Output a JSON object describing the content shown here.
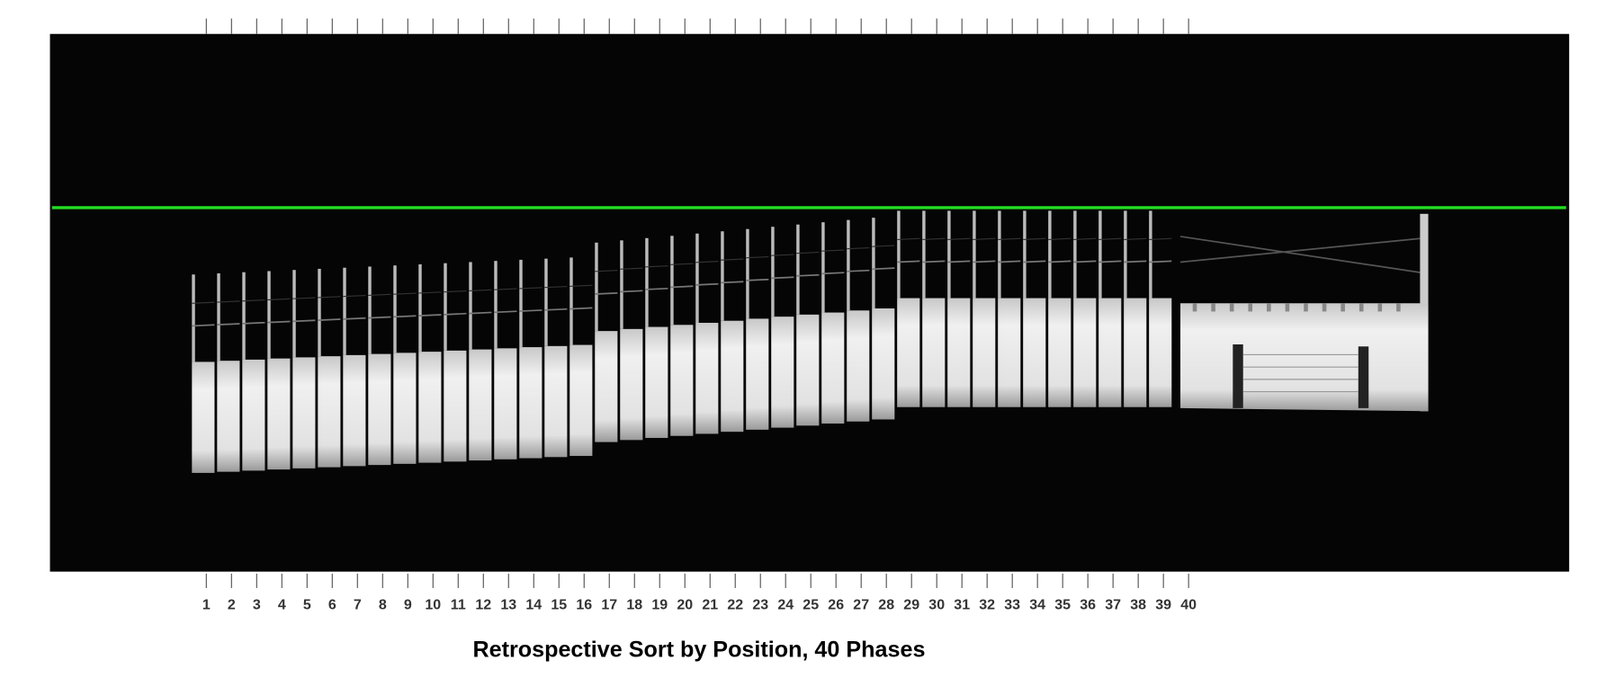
{
  "figure": {
    "phases": [
      1,
      2,
      3,
      4,
      5,
      6,
      7,
      8,
      9,
      10,
      11,
      12,
      13,
      14,
      15,
      16,
      17,
      18,
      19,
      20,
      21,
      22,
      23,
      24,
      25,
      26,
      27,
      28,
      29,
      30,
      31,
      32,
      33,
      34,
      35,
      36,
      37,
      38,
      39,
      40
    ],
    "caption": "Retrospective Sort by Position, 40 Phases"
  }
}
